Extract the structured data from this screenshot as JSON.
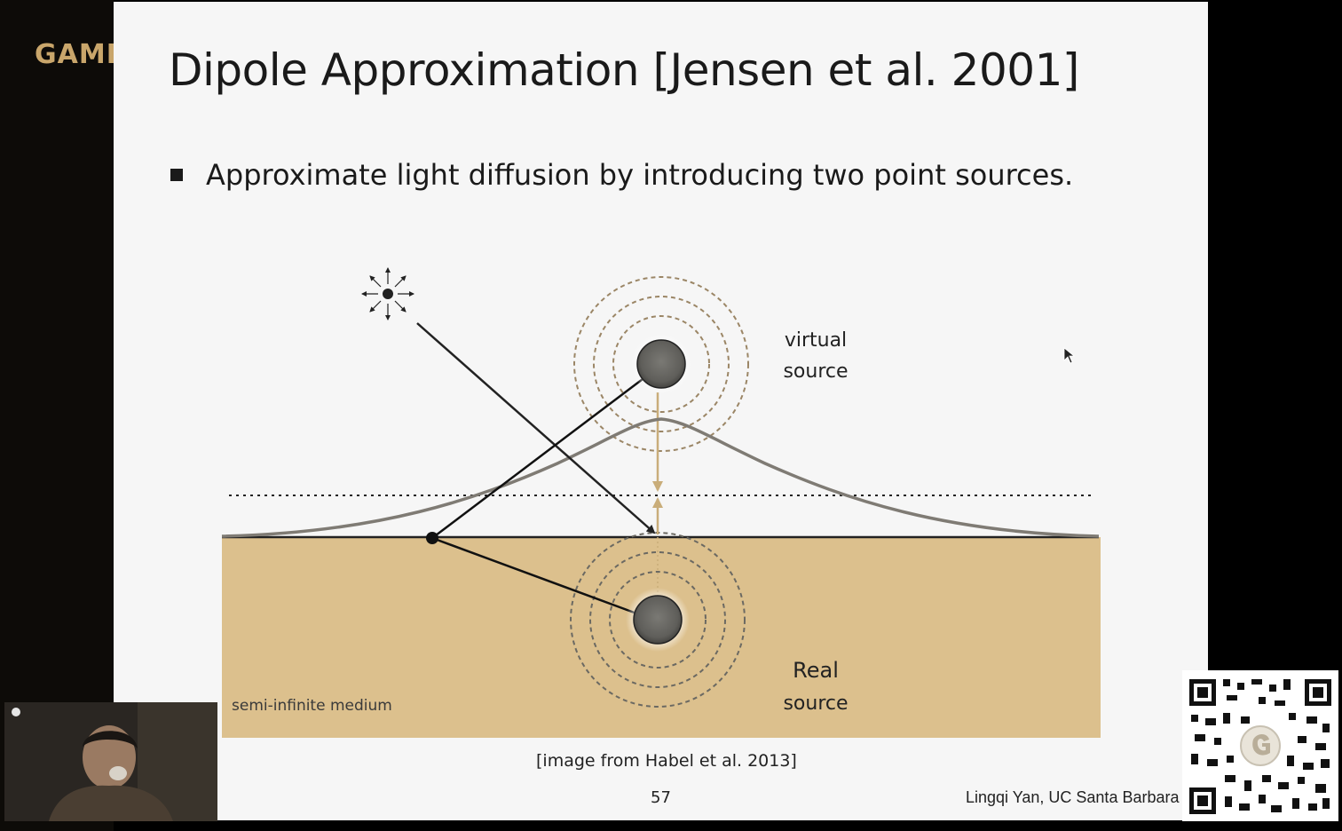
{
  "brand": {
    "text": "GAME"
  },
  "slide": {
    "title": "Dipole Approximation [Jensen et al. 2001]",
    "bullet": "Approximate light diffusion by introducing two point sources.",
    "diagram": {
      "virtual_source_line1": "virtual",
      "virtual_source_line2": "source",
      "real_source_line1": "Real",
      "real_source_line2": "source",
      "medium_label": "semi-infinite medium"
    },
    "caption": "[image from Habel et al. 2013]",
    "page_number": "57",
    "author": "Lingqi Yan, UC Santa Barbara"
  },
  "colors": {
    "medium": "#dcc08d",
    "virtual_arrow": "#c9ad7a",
    "source_fill": "#6b6a66",
    "profile_curve": "#7f7b74"
  }
}
